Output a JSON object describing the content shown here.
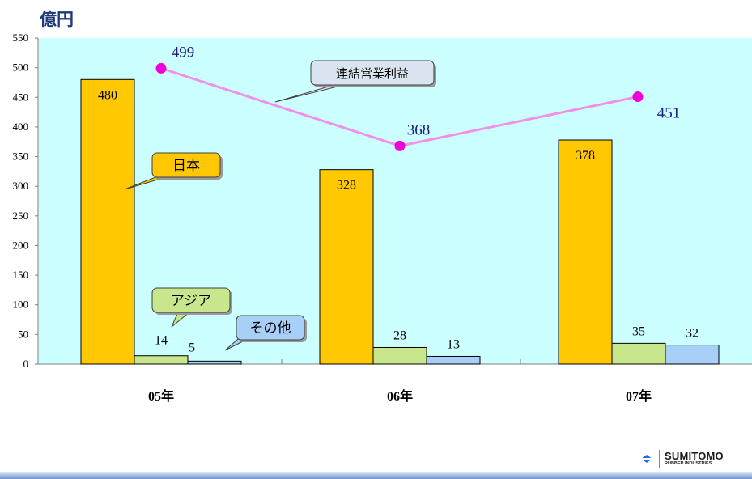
{
  "unit_label": "億円",
  "logo": {
    "name": "SUMITOMO",
    "sub": "RUBBER INDUSTRIES"
  },
  "colors": {
    "japan": "#FFC800",
    "asia": "#C8E68C",
    "other": "#A8CFF8",
    "line": "#F090E8",
    "point": "#F000D8",
    "plot_bg": "#CCFFFF"
  },
  "chart_data": {
    "type": "bar",
    "categories": [
      "05年",
      "06年",
      "07年"
    ],
    "ylim": [
      0,
      550
    ],
    "yticks": [
      0,
      50,
      100,
      150,
      200,
      250,
      300,
      350,
      400,
      450,
      500,
      550
    ],
    "series": [
      {
        "name": "日本",
        "values": [
          480,
          328,
          378
        ]
      },
      {
        "name": "アジア",
        "values": [
          14,
          28,
          35
        ]
      },
      {
        "name": "その他",
        "values": [
          5,
          13,
          32
        ]
      }
    ],
    "line_series": {
      "name": "連結営業利益",
      "values": [
        499,
        368,
        451
      ]
    },
    "grid": false
  }
}
